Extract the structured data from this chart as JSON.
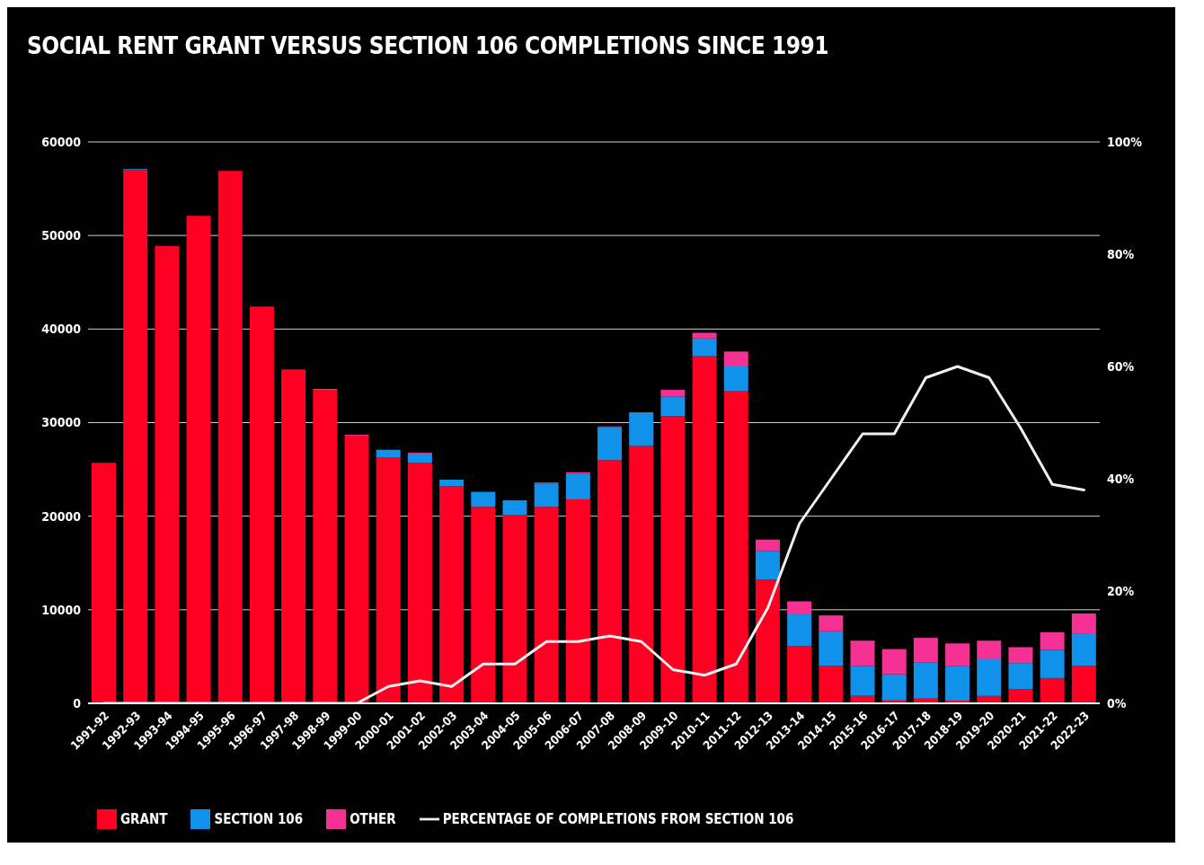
{
  "chart_data": {
    "type": "bar",
    "title": "SOCIAL RENT GRANT VERSUS SECTION 106 COMPLETIONS SINCE 1991",
    "categories": [
      "1991-92",
      "1992-93",
      "1993-94",
      "1994-95",
      "1995-96",
      "1996-97",
      "1997-98",
      "1998-99",
      "1999-00",
      "2000-01",
      "2001-02",
      "2002-03",
      "2003-04",
      "2004-05",
      "2005-06",
      "2006-07",
      "2007-08",
      "2008-09",
      "2009-10",
      "2010-11",
      "2011-12",
      "2012-13",
      "2013-14",
      "2014-15",
      "2015-16",
      "2016-17",
      "2017-18",
      "2018-19",
      "2019-20",
      "2020-21",
      "2021-22",
      "2022-23"
    ],
    "stacked": true,
    "series": [
      {
        "name": "GRANT",
        "color": "#ff0022",
        "values": [
          25700,
          57000,
          48900,
          52100,
          56900,
          42400,
          35700,
          33500,
          28600,
          26300,
          25700,
          23200,
          21000,
          20100,
          21000,
          21800,
          26000,
          27500,
          30700,
          37100,
          33400,
          13200,
          6100,
          4000,
          800,
          300,
          500,
          300,
          800,
          1500,
          2700,
          4000
        ]
      },
      {
        "name": "SECTION 106",
        "color": "#1192ea",
        "values": [
          0,
          100,
          0,
          0,
          0,
          0,
          0,
          0,
          0,
          800,
          1000,
          700,
          1600,
          1600,
          2500,
          2700,
          3500,
          3500,
          2100,
          1900,
          2600,
          3100,
          3400,
          3700,
          3200,
          2800,
          3900,
          3700,
          3900,
          2800,
          3000,
          3400
        ]
      },
      {
        "name": "OTHER",
        "color": "#f53294",
        "values": [
          0,
          0,
          0,
          0,
          0,
          0,
          0,
          100,
          100,
          0,
          100,
          0,
          0,
          0,
          100,
          200,
          100,
          100,
          700,
          600,
          1600,
          1200,
          1400,
          1700,
          2700,
          2700,
          2600,
          2400,
          2000,
          1700,
          1900,
          2200
        ]
      },
      {
        "name": "PERCENTAGE OF COMPLETIONS FROM SECTION 106",
        "type": "line",
        "axis": "y2",
        "color": "#f0f0f0",
        "values": [
          0,
          0,
          0,
          0,
          0,
          0,
          0,
          0,
          0,
          3,
          4,
          3,
          7,
          7,
          11,
          11,
          12,
          11,
          6,
          5,
          7,
          17,
          32,
          40,
          48,
          48,
          58,
          60,
          58,
          49,
          39,
          38
        ]
      }
    ],
    "ylim": [
      0,
      60000
    ],
    "yticks": [
      0,
      10000,
      20000,
      30000,
      40000,
      50000,
      60000
    ],
    "y2lim": [
      0,
      100
    ],
    "y2ticks": [
      {
        "value": 0,
        "label": "0%"
      },
      {
        "value": 20,
        "label": "20%"
      },
      {
        "value": 40,
        "label": "40%"
      },
      {
        "value": 60,
        "label": "60%"
      },
      {
        "value": 80,
        "label": "80%"
      },
      {
        "value": 100,
        "label": "100%"
      }
    ],
    "grid": "y",
    "legend": "bottom left"
  }
}
